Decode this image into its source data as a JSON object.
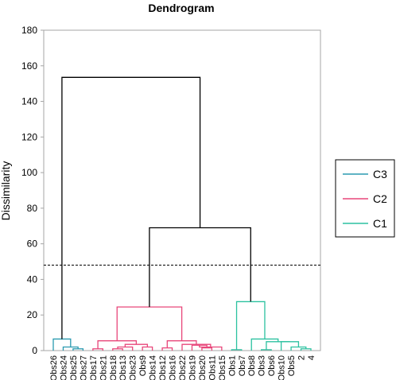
{
  "chart_data": {
    "type": "dendrogram",
    "title": "Dendrogram",
    "ylabel": "Dissimilarity",
    "ylim": [
      0,
      180
    ],
    "yticks": [
      0,
      20,
      40,
      60,
      80,
      100,
      120,
      140,
      160,
      180
    ],
    "cut_line": 48,
    "grid": false,
    "legend_position": "right",
    "legend": [
      {
        "label": "C3",
        "color": "#2a9ab0"
      },
      {
        "label": "C2",
        "color": "#e8467a"
      },
      {
        "label": "C1",
        "color": "#2cc1a0"
      }
    ],
    "root_color": "#000000",
    "leaves": [
      "Obs26",
      "Obs24",
      "Obs25",
      "Obs27",
      "Obs17",
      "Obs21",
      "Obs18",
      "Obs13",
      "Obs23",
      "Obs9",
      "Obs14",
      "Obs12",
      "Obs16",
      "Obs22",
      "Obs19",
      "Obs20",
      "Obs11",
      "Obs15",
      "Obs1",
      "Obs7",
      "Obs8",
      "Obs3",
      "Obs6",
      "Obs10",
      "Obs5",
      "2",
      "4"
    ],
    "merges": [
      {
        "left": "Obs25",
        "right": "Obs27",
        "height": 1.0,
        "cluster": "C3"
      },
      {
        "left": "Obs24",
        "right": 1,
        "height": 2.0,
        "cluster": "C3"
      },
      {
        "left": "Obs26",
        "right": 2,
        "height": 6.5,
        "cluster": "C3"
      },
      {
        "left": "Obs17",
        "right": "Obs21",
        "height": 1.0,
        "cluster": "C2"
      },
      {
        "left": "Obs18",
        "right": "Obs13",
        "height": 1.0,
        "cluster": "C2"
      },
      {
        "left": 5,
        "right": "Obs23",
        "height": 2.0,
        "cluster": "C2"
      },
      {
        "left": "Obs9",
        "right": "Obs14",
        "height": 2.0,
        "cluster": "C2"
      },
      {
        "left": 6,
        "right": 7,
        "height": 3.5,
        "cluster": "C2"
      },
      {
        "left": 4,
        "right": 8,
        "height": 5.5,
        "cluster": "C2"
      },
      {
        "left": "Obs12",
        "right": "Obs16",
        "height": 1.5,
        "cluster": "C2"
      },
      {
        "left": "Obs20",
        "right": "Obs11",
        "height": 1.5,
        "cluster": "C2"
      },
      {
        "left": "Obs19",
        "right": 11,
        "height": 3.0,
        "cluster": "C2"
      },
      {
        "left": 12,
        "right": "Obs15",
        "height": 2.0,
        "cluster": "C2"
      },
      {
        "left": "Obs22",
        "right": 13,
        "height": 3.5,
        "cluster": "C2"
      },
      {
        "left": 10,
        "right": 14,
        "height": 5.5,
        "cluster": "C2"
      },
      {
        "left": 9,
        "right": 15,
        "height": 24.5,
        "cluster": "C2"
      },
      {
        "left": "Obs1",
        "right": "Obs7",
        "height": 0.5,
        "cluster": "C1"
      },
      {
        "left": "Obs3",
        "right": "Obs6",
        "height": 0.5,
        "cluster": "C1"
      },
      {
        "left": "2",
        "right": "4",
        "height": 1.0,
        "cluster": "C1"
      },
      {
        "left": "Obs5",
        "right": 19,
        "height": 2.0,
        "cluster": "C1"
      },
      {
        "left": "Obs10",
        "right": 20,
        "height": 5.0,
        "cluster": "C1"
      },
      {
        "left": 18,
        "right": 21,
        "height": 5.0,
        "cluster": "C1"
      },
      {
        "left": "Obs8",
        "right": 22,
        "height": 6.5,
        "cluster": "C1"
      },
      {
        "left": 17,
        "right": 23,
        "height": 27.5,
        "cluster": "C1"
      },
      {
        "left": 16,
        "right": 24,
        "height": 69.0,
        "cluster": "root"
      },
      {
        "left": 3,
        "right": 25,
        "height": 153.5,
        "cluster": "root"
      }
    ]
  }
}
